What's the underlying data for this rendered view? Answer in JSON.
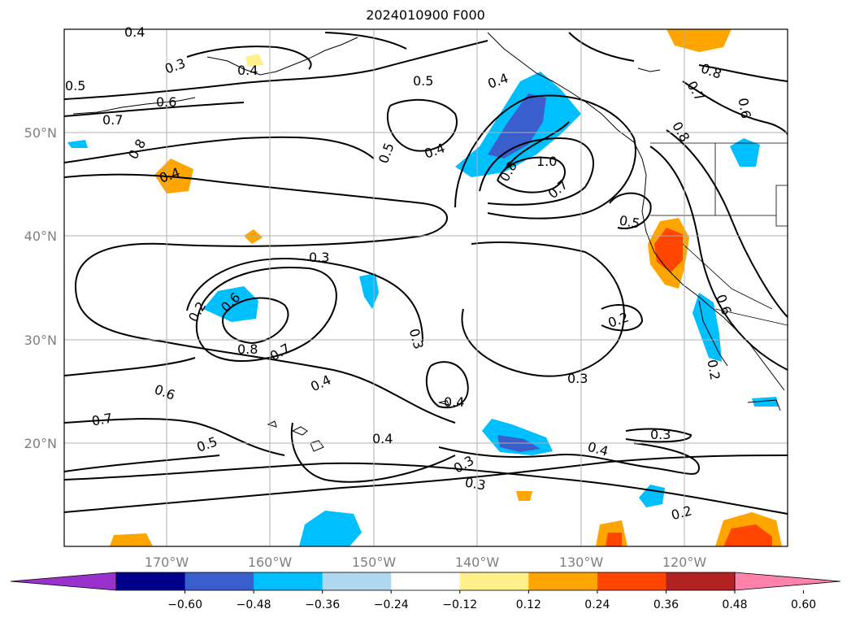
{
  "title": "2024010900 F000",
  "lon_ticks": [
    "170°W",
    "160°W",
    "150°W",
    "140°W",
    "130°W",
    "120°W"
  ],
  "lat_ticks": [
    "50°N",
    "40°N",
    "30°N",
    "20°N"
  ],
  "contour_labels": [
    "0.4",
    "0.3",
    "0.5",
    "0.4",
    "0.5",
    "0.6",
    "0.7",
    "0.8",
    "0.4",
    "0.5",
    "0.4",
    "0.8",
    "1.0",
    "0.7",
    "0.8",
    "0.7",
    "0.8",
    "0.6",
    "0.5",
    "0.3",
    "0.2",
    "0.6",
    "0.8",
    "0.7",
    "0.3",
    "0.4",
    "0.6",
    "0.7",
    "0.5",
    "0.4",
    "0.4",
    "0.3",
    "0.2",
    "0.3",
    "0.3",
    "0.4",
    "0.3",
    "0.2",
    "0.2",
    "0.6",
    "0.4"
  ],
  "colorbar": {
    "ticks": [
      "−0.60",
      "−0.48",
      "−0.36",
      "−0.24",
      "−0.12",
      "0.12",
      "0.24",
      "0.36",
      "0.48",
      "0.60"
    ],
    "colors": [
      "#9932cc",
      "#00008b",
      "#3a5fcd",
      "#00bfff",
      "#add8f0",
      "#ffffff",
      "#fff08c",
      "#ffa500",
      "#ff4500",
      "#b22222",
      "#ff82ab"
    ]
  }
}
